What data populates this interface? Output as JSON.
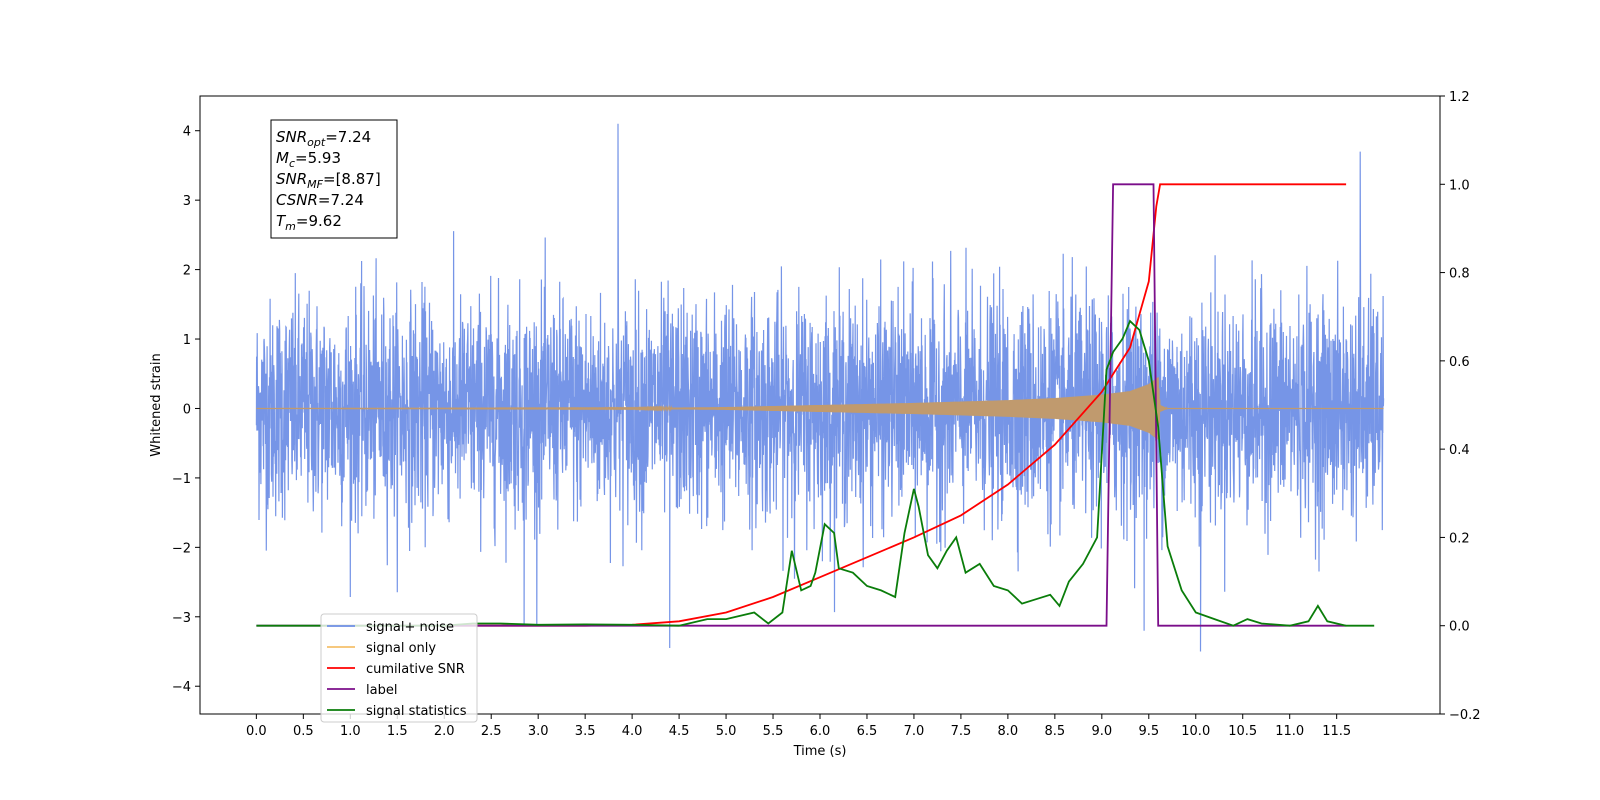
{
  "chart_data": {
    "type": "line",
    "xlabel": "Time (s)",
    "ylabel": "Whitened strain",
    "xlim": [
      -0.6,
      12.6
    ],
    "ylim": [
      -4.4,
      4.5
    ],
    "y2lim": [
      -0.2,
      1.2
    ],
    "x_ticks": [
      0.0,
      0.5,
      1.0,
      1.5,
      2.0,
      2.5,
      3.0,
      3.5,
      4.0,
      4.5,
      5.0,
      5.5,
      6.0,
      6.5,
      7.0,
      7.5,
      8.0,
      8.5,
      9.0,
      9.5,
      10.0,
      10.5,
      11.0,
      11.5
    ],
    "x_tick_labels": [
      "0.0",
      "0.5",
      "1.0",
      "1.5",
      "2.0",
      "2.5",
      "3.0",
      "3.5",
      "4.0",
      "4.5",
      "5.0",
      "5.5",
      "6.0",
      "6.5",
      "7.0",
      "7.5",
      "8.0",
      "8.5",
      "9.0",
      "9.5",
      "10.0",
      "10.5",
      "11.0",
      "11.5"
    ],
    "y_ticks": [
      -4,
      -3,
      -2,
      -1,
      0,
      1,
      2,
      3,
      4
    ],
    "y_tick_labels": [
      "−4",
      "−3",
      "−2",
      "−1",
      "0",
      "1",
      "2",
      "3",
      "4"
    ],
    "y2_ticks": [
      -0.2,
      0.0,
      0.2,
      0.4,
      0.6,
      0.8,
      1.0,
      1.2
    ],
    "y2_tick_labels": [
      "−0.2",
      "0.0",
      "0.2",
      "0.4",
      "0.6",
      "0.8",
      "1.0",
      "1.2"
    ],
    "legend_position": "lower-left",
    "grid": false,
    "stats_box": [
      {
        "base": "SNR",
        "sub": "opt",
        "value": "=7.24"
      },
      {
        "base": "M",
        "sub": "c",
        "value": "=5.93"
      },
      {
        "base": "SNR",
        "sub": "MF",
        "value": "=[8.87]"
      },
      {
        "base": "CSNR",
        "sub": "",
        "value": "=7.24"
      },
      {
        "base": "T",
        "sub": "m",
        "value": "=9.62"
      }
    ],
    "series": [
      {
        "name": "signal+ noise",
        "axis": "left",
        "color": "#6f8fe6",
        "kind": "noise",
        "x_range": [
          0.0,
          12.0
        ],
        "sigma": 1.0,
        "peak_points": [
          [
            3.85,
            4.1
          ],
          [
            11.75,
            3.7
          ],
          [
            4.4,
            -3.45
          ],
          [
            10.05,
            -3.5
          ],
          [
            9.45,
            -3.2
          ],
          [
            2.85,
            -3.1
          ]
        ]
      },
      {
        "name": "signal only",
        "axis": "left",
        "color": "#f5c16b",
        "kind": "chirp",
        "envelope": [
          [
            0.0,
            0.0
          ],
          [
            4.0,
            0.005
          ],
          [
            5.0,
            0.02
          ],
          [
            6.0,
            0.05
          ],
          [
            7.0,
            0.08
          ],
          [
            8.0,
            0.12
          ],
          [
            8.5,
            0.15
          ],
          [
            9.0,
            0.2
          ],
          [
            9.3,
            0.25
          ],
          [
            9.5,
            0.35
          ],
          [
            9.6,
            0.45
          ],
          [
            9.62,
            0.05
          ],
          [
            9.7,
            0.0
          ],
          [
            12.0,
            0.0
          ]
        ]
      },
      {
        "name": "cumilative SNR",
        "axis": "right",
        "color": "#ff0000",
        "points": [
          [
            2.0,
            0.0
          ],
          [
            3.5,
            0.0
          ],
          [
            4.0,
            0.002
          ],
          [
            4.5,
            0.01
          ],
          [
            5.0,
            0.03
          ],
          [
            5.5,
            0.065
          ],
          [
            6.0,
            0.11
          ],
          [
            6.5,
            0.155
          ],
          [
            7.0,
            0.2
          ],
          [
            7.5,
            0.25
          ],
          [
            8.0,
            0.32
          ],
          [
            8.5,
            0.41
          ],
          [
            9.0,
            0.53
          ],
          [
            9.3,
            0.63
          ],
          [
            9.5,
            0.78
          ],
          [
            9.58,
            0.95
          ],
          [
            9.62,
            1.0
          ],
          [
            11.6,
            1.0
          ]
        ]
      },
      {
        "name": "label",
        "axis": "right",
        "color": "#7b0e8a",
        "points": [
          [
            0.0,
            0.0
          ],
          [
            9.05,
            0.0
          ],
          [
            9.12,
            1.0
          ],
          [
            9.55,
            1.0
          ],
          [
            9.6,
            0.0
          ],
          [
            11.6,
            0.0
          ]
        ]
      },
      {
        "name": "signal statistics",
        "axis": "right",
        "color": "#0a7d0a",
        "points": [
          [
            0.0,
            0.0
          ],
          [
            2.0,
            0.0
          ],
          [
            2.3,
            0.005
          ],
          [
            2.6,
            0.005
          ],
          [
            3.0,
            0.002
          ],
          [
            3.5,
            0.003
          ],
          [
            4.0,
            0.002
          ],
          [
            4.5,
            0.0
          ],
          [
            4.8,
            0.015
          ],
          [
            5.0,
            0.015
          ],
          [
            5.3,
            0.03
          ],
          [
            5.45,
            0.005
          ],
          [
            5.6,
            0.03
          ],
          [
            5.7,
            0.17
          ],
          [
            5.8,
            0.08
          ],
          [
            5.9,
            0.09
          ],
          [
            5.95,
            0.12
          ],
          [
            6.05,
            0.23
          ],
          [
            6.15,
            0.21
          ],
          [
            6.2,
            0.13
          ],
          [
            6.35,
            0.12
          ],
          [
            6.5,
            0.09
          ],
          [
            6.65,
            0.08
          ],
          [
            6.8,
            0.065
          ],
          [
            6.9,
            0.21
          ],
          [
            7.0,
            0.31
          ],
          [
            7.05,
            0.27
          ],
          [
            7.15,
            0.16
          ],
          [
            7.25,
            0.13
          ],
          [
            7.35,
            0.17
          ],
          [
            7.45,
            0.2
          ],
          [
            7.55,
            0.12
          ],
          [
            7.7,
            0.14
          ],
          [
            7.85,
            0.09
          ],
          [
            8.0,
            0.08
          ],
          [
            8.15,
            0.05
          ],
          [
            8.3,
            0.06
          ],
          [
            8.45,
            0.07
          ],
          [
            8.55,
            0.045
          ],
          [
            8.65,
            0.1
          ],
          [
            8.8,
            0.14
          ],
          [
            8.95,
            0.2
          ],
          [
            9.05,
            0.58
          ],
          [
            9.12,
            0.62
          ],
          [
            9.22,
            0.65
          ],
          [
            9.3,
            0.69
          ],
          [
            9.4,
            0.67
          ],
          [
            9.5,
            0.6
          ],
          [
            9.6,
            0.45
          ],
          [
            9.7,
            0.18
          ],
          [
            9.85,
            0.08
          ],
          [
            10.0,
            0.03
          ],
          [
            10.2,
            0.015
          ],
          [
            10.4,
            0.0
          ],
          [
            10.55,
            0.015
          ],
          [
            10.7,
            0.005
          ],
          [
            11.0,
            0.0
          ],
          [
            11.2,
            0.01
          ],
          [
            11.3,
            0.045
          ],
          [
            11.4,
            0.01
          ],
          [
            11.6,
            0.0
          ],
          [
            11.9,
            0.0
          ]
        ]
      }
    ]
  }
}
